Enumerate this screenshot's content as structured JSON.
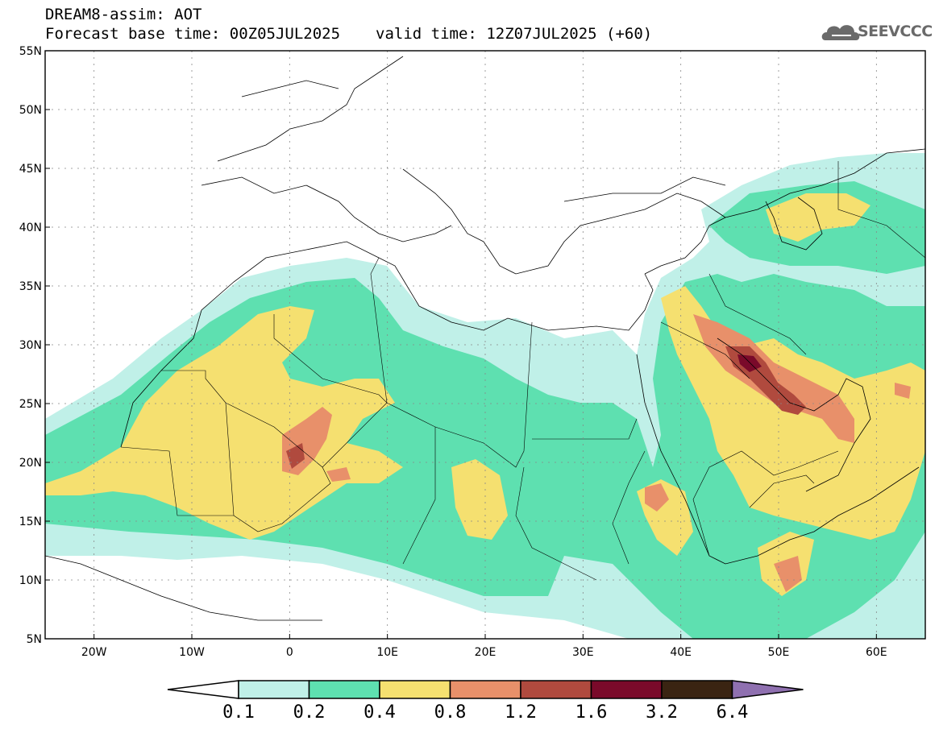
{
  "header": {
    "title": "DREAM8-assim: AOT",
    "base_time": "Forecast base time: 00Z05JUL2025",
    "valid_time": "valid time: 12Z07JUL2025 (+60)"
  },
  "logo": {
    "text": "SEEVCCC",
    "icon": "cloud-logo-icon"
  },
  "map": {
    "lon_range": [
      -25,
      65
    ],
    "lat_range": [
      5,
      55
    ],
    "lat_ticks": [
      "55N",
      "50N",
      "45N",
      "40N",
      "35N",
      "30N",
      "25N",
      "20N",
      "15N",
      "10N",
      "5N"
    ],
    "lon_ticks": [
      "20W",
      "10W",
      "0",
      "10E",
      "20E",
      "30E",
      "40E",
      "50E",
      "60E"
    ],
    "lat_tick_values": [
      55,
      50,
      45,
      40,
      35,
      30,
      25,
      20,
      15,
      10,
      5
    ],
    "lon_tick_values": [
      -20,
      -10,
      0,
      10,
      20,
      30,
      40,
      50,
      60
    ]
  },
  "colorbar": {
    "labels": [
      "0.1",
      "0.2",
      "0.4",
      "0.8",
      "1.2",
      "1.6",
      "3.2",
      "6.4"
    ],
    "colors": [
      "#c0f0e8",
      "#5ee0b0",
      "#f5e070",
      "#e8906a",
      "#b04a3e",
      "#7a0a2a",
      "#3a2412",
      "#8f70b0"
    ],
    "below_color": "#ffffff"
  }
}
